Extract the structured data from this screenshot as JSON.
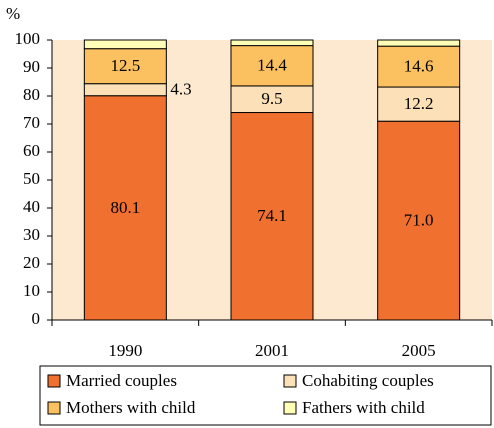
{
  "chart_data": {
    "type": "stacked_bar",
    "y_label": "%",
    "categories": [
      "1990",
      "2001",
      "2005"
    ],
    "series": [
      {
        "name": "Married couples",
        "color": "#f07030",
        "values": [
          80.1,
          74.1,
          71.0
        ],
        "value_labels": [
          "80.1",
          "74.1",
          "71.0"
        ]
      },
      {
        "name": "Cohabiting couples",
        "color": "#fbe0b8",
        "values": [
          4.3,
          9.5,
          12.2
        ]
      },
      {
        "name": "Mothers with child",
        "color": "#fbc060",
        "values": [
          12.5,
          14.4,
          14.6
        ]
      },
      {
        "name": "Fathers with child",
        "color": "#ffffb8",
        "values": [
          3.1,
          2.0,
          2.2
        ]
      }
    ],
    "ylim": [
      0,
      100
    ],
    "yticks": [
      0,
      10,
      20,
      30,
      40,
      50,
      60,
      70,
      80,
      90,
      100
    ],
    "plot_background": "#fde9cf",
    "legend": "bottom"
  }
}
